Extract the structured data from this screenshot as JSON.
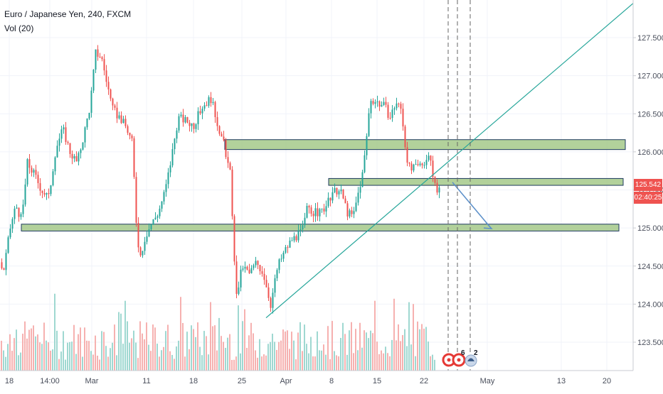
{
  "header": {
    "symbol_title": "Euro / Japanese Yen, 240, FXCM",
    "volume_indicator": "Vol (20)"
  },
  "price_axis": {
    "labels": [
      "127.500",
      "127.000",
      "126.500",
      "126.000",
      "125.500",
      "125.000",
      "124.500",
      "124.000",
      "123.500"
    ],
    "last_price": "125.542",
    "countdown": "02:40:25"
  },
  "time_axis": {
    "labels": [
      "18",
      "14:00",
      "Mar",
      "11",
      "18",
      "25",
      "Apr",
      "8",
      "15",
      "22",
      "May",
      "13",
      "20"
    ]
  },
  "events": {
    "badge_one": "6",
    "badge_two": "2"
  },
  "colors": {
    "bullish": "#26a69a",
    "bearish": "#ef5350",
    "zone_fill": "#a5c98a",
    "zone_border": "#1e3a5f",
    "trendline": "#26a69a",
    "projection": "#5b8fc9",
    "tag_red": "#ef5350"
  },
  "chart_data": {
    "type": "candlestick",
    "title": "Euro / Japanese Yen, 240, FXCM",
    "series": [
      {
        "name": "Vol (20)",
        "type": "bar"
      }
    ],
    "price_range": [
      123.2,
      127.9
    ],
    "price_path": [
      [
        0,
        124.55
      ],
      [
        4,
        124.4
      ],
      [
        14,
        125.0
      ],
      [
        22,
        125.3
      ],
      [
        30,
        125.1
      ],
      [
        38,
        125.85
      ],
      [
        48,
        125.7
      ],
      [
        58,
        125.5
      ],
      [
        68,
        125.4
      ],
      [
        78,
        126.05
      ],
      [
        88,
        126.3
      ],
      [
        98,
        126.0
      ],
      [
        108,
        125.85
      ],
      [
        118,
        126.25
      ],
      [
        126,
        126.6
      ],
      [
        134,
        127.3
      ],
      [
        142,
        127.25
      ],
      [
        150,
        126.9
      ],
      [
        158,
        126.55
      ],
      [
        168,
        126.45
      ],
      [
        178,
        126.3
      ],
      [
        186,
        126.1
      ],
      [
        190,
        125.2
      ],
      [
        196,
        124.6
      ],
      [
        204,
        124.9
      ],
      [
        212,
        125.05
      ],
      [
        222,
        125.2
      ],
      [
        232,
        125.5
      ],
      [
        240,
        125.9
      ],
      [
        250,
        126.45
      ],
      [
        262,
        126.4
      ],
      [
        272,
        126.35
      ],
      [
        284,
        126.6
      ],
      [
        296,
        126.7
      ],
      [
        306,
        126.35
      ],
      [
        314,
        126.1
      ],
      [
        318,
        125.85
      ],
      [
        322,
        125.95
      ],
      [
        326,
        125.1
      ],
      [
        332,
        124.1
      ],
      [
        340,
        124.5
      ],
      [
        350,
        124.4
      ],
      [
        360,
        124.55
      ],
      [
        370,
        124.4
      ],
      [
        380,
        124.0
      ],
      [
        390,
        124.5
      ],
      [
        400,
        124.7
      ],
      [
        410,
        124.85
      ],
      [
        418,
        124.9
      ],
      [
        426,
        125.0
      ],
      [
        432,
        125.3
      ],
      [
        440,
        125.2
      ],
      [
        450,
        125.2
      ],
      [
        462,
        125.35
      ],
      [
        472,
        125.5
      ],
      [
        480,
        125.45
      ],
      [
        488,
        125.2
      ],
      [
        496,
        125.15
      ],
      [
        504,
        125.5
      ],
      [
        510,
        125.75
      ],
      [
        516,
        126.3
      ],
      [
        520,
        126.7
      ],
      [
        530,
        126.65
      ],
      [
        540,
        126.6
      ],
      [
        548,
        126.45
      ],
      [
        556,
        126.65
      ],
      [
        564,
        126.55
      ],
      [
        570,
        126.0
      ],
      [
        576,
        125.75
      ],
      [
        586,
        125.8
      ],
      [
        594,
        125.85
      ],
      [
        602,
        125.95
      ],
      [
        608,
        125.7
      ],
      [
        614,
        125.45
      ],
      [
        618,
        125.54
      ]
    ],
    "support_resistance_zones": [
      {
        "top": 126.16,
        "bottom": 126.03
      },
      {
        "top": 125.65,
        "bottom": 125.56
      },
      {
        "top": 125.05,
        "bottom": 124.96
      }
    ],
    "trendline": {
      "from": {
        "date": "Mar 28",
        "price": 123.82
      },
      "to": {
        "date": "May 24",
        "price": 127.95
      }
    },
    "projection": {
      "from_price": 125.6,
      "to_price": 125.0
    }
  }
}
